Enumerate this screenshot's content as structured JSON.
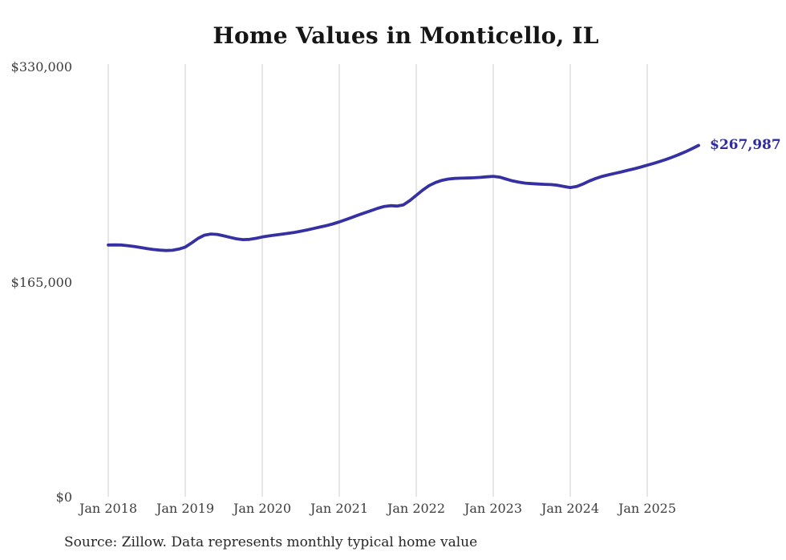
{
  "title": "Home Values in Monticello, IL",
  "source_note": "Source: Zillow. Data represents monthly typical home value",
  "current_value_label": "$267,987",
  "colors": {
    "line": "#3531a3",
    "end_label": "#2f2b9e",
    "grid": "#cccccc",
    "axis_text": "#3d3d3d",
    "title_text": "#151515",
    "source_text": "#262626",
    "background": "#ffffff"
  },
  "chart_data": {
    "type": "line",
    "title": "Home Values in Monticello, IL",
    "xlabel": "",
    "ylabel": "",
    "ylim": [
      0,
      330000
    ],
    "grid": "vertical-only",
    "legend": "none",
    "x_start": "2018-01",
    "x_interval": "month",
    "y_tick_labels": [
      "$330,000",
      "$165,000",
      "$0"
    ],
    "y_tick_values": [
      330000,
      165000,
      0
    ],
    "x_tick_labels": [
      "Jan 2018",
      "Jan 2019",
      "Jan 2020",
      "Jan 2021",
      "Jan 2022",
      "Jan 2023",
      "Jan 2024",
      "Jan 2025"
    ],
    "end_label": "$267,987",
    "end_value": 267987,
    "series": [
      {
        "name": "Typical home value",
        "values": [
          192000,
          192100,
          192000,
          191500,
          190900,
          190100,
          189300,
          188600,
          188100,
          187800,
          188000,
          188900,
          190400,
          193600,
          197100,
          199500,
          200400,
          200100,
          199000,
          197800,
          196700,
          196100,
          196300,
          197100,
          198100,
          198900,
          199600,
          200200,
          200900,
          201600,
          202500,
          203500,
          204600,
          205700,
          206800,
          208100,
          209600,
          211300,
          213100,
          214900,
          216600,
          218300,
          220000,
          221400,
          222000,
          221700,
          222600,
          225900,
          229900,
          233900,
          237300,
          239700,
          241300,
          242300,
          242800,
          243000,
          243100,
          243300,
          243600,
          244000,
          244400,
          243800,
          242300,
          240900,
          239900,
          239200,
          238800,
          238500,
          238300,
          238100,
          237600,
          236700,
          235800,
          236600,
          238600,
          240900,
          242800,
          244400,
          245600,
          246700,
          247800,
          249000,
          250200,
          251500,
          252900,
          254300,
          255800,
          257400,
          259200,
          261100,
          263200,
          265500,
          267987
        ]
      }
    ]
  }
}
